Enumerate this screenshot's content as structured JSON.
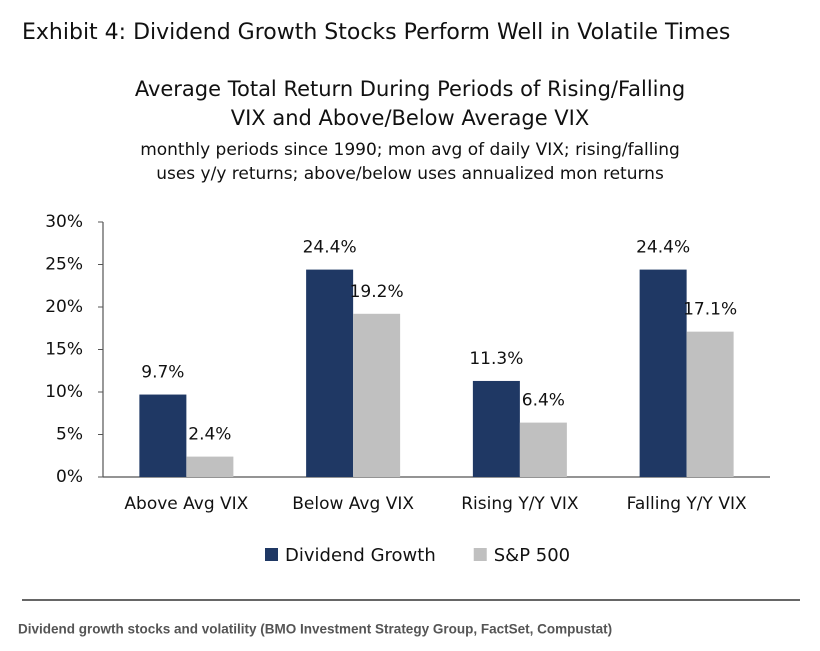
{
  "exhibit_title": "Exhibit 4: Dividend Growth Stocks Perform Well in Volatile Times",
  "caption": "Dividend growth stocks and volatility (BMO Investment Strategy Group, FactSet, Compustat)",
  "chart_data": {
    "type": "bar",
    "title": [
      "Average Total Return During Periods of Rising/Falling",
      "VIX and Above/Below Average VIX"
    ],
    "subtitle": [
      "monthly periods since 1990; mon avg of daily VIX; rising/falling",
      "uses y/y returns; above/below uses annualized mon returns"
    ],
    "categories": [
      "Above Avg VIX",
      "Below Avg VIX",
      "Rising Y/Y VIX",
      "Falling Y/Y VIX"
    ],
    "series": [
      {
        "name": "Dividend Growth",
        "color": "#1f3864",
        "values": [
          9.7,
          24.4,
          11.3,
          24.4
        ],
        "value_labels": [
          "9.7%",
          "24.4%",
          "11.3%",
          "24.4%"
        ]
      },
      {
        "name": "S&P 500",
        "color": "#c0c0c0",
        "values": [
          2.4,
          19.2,
          6.4,
          17.1
        ],
        "value_labels": [
          "2.4%",
          "19.2%",
          "6.4%",
          "17.1%"
        ]
      }
    ],
    "ylim": [
      0,
      30
    ],
    "yticks": [
      {
        "value": 0,
        "label": "0%"
      },
      {
        "value": 5,
        "label": "5%"
      },
      {
        "value": 10,
        "label": "10%"
      },
      {
        "value": 15,
        "label": "15%"
      },
      {
        "value": 20,
        "label": "20%"
      },
      {
        "value": 25,
        "label": "25%"
      },
      {
        "value": 30,
        "label": "30%"
      }
    ],
    "grid": false,
    "legend": "bottom"
  }
}
